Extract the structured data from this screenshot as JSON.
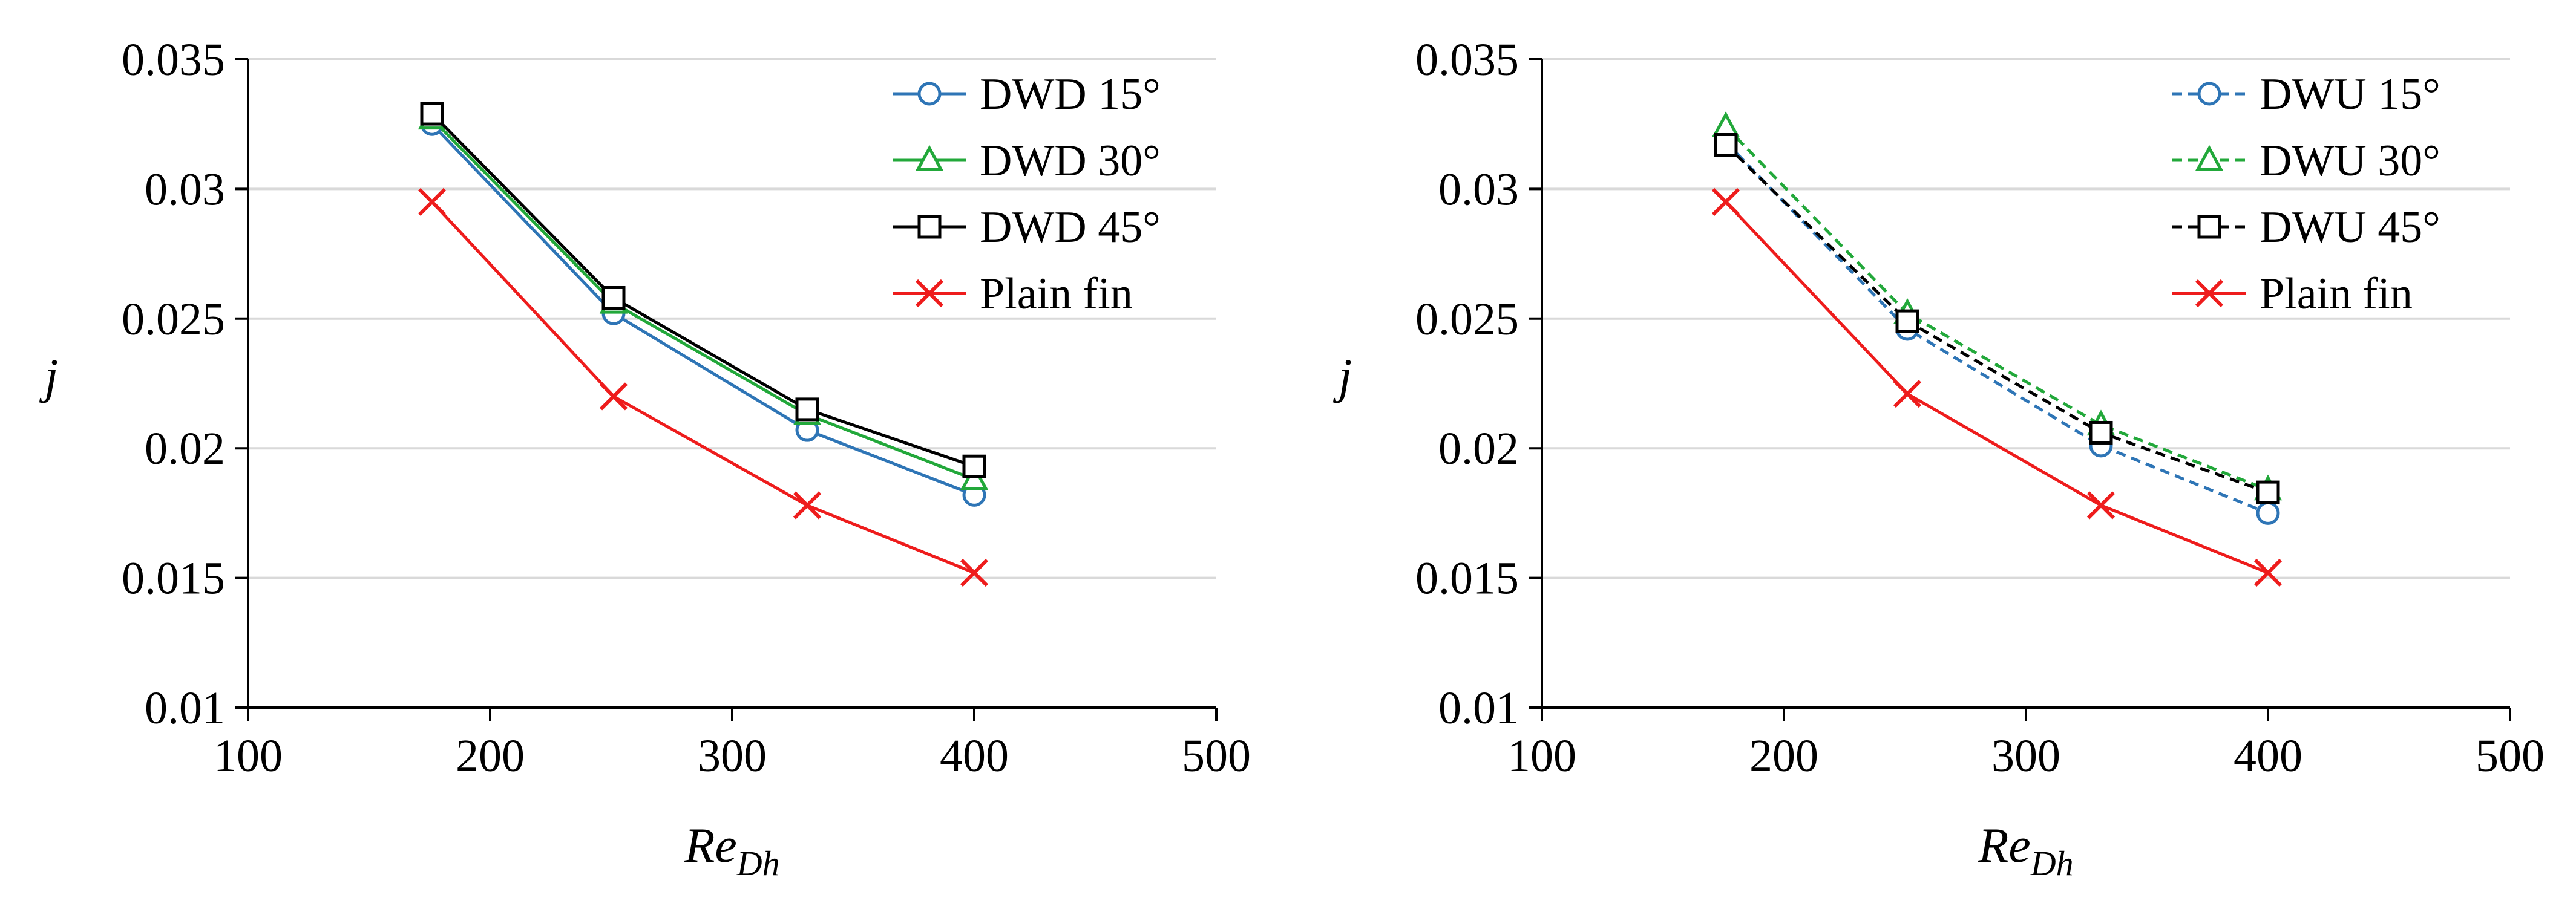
{
  "chart_data": [
    {
      "type": "line",
      "title": "",
      "xlabel": "Re",
      "xlabel_subscript": "Dh",
      "ylabel": "j",
      "xlim": [
        100,
        500
      ],
      "ylim": [
        0.01,
        0.035
      ],
      "xticks": [
        100,
        200,
        300,
        400,
        500
      ],
      "xtick_labels": [
        "100",
        "200",
        "300",
        "400",
        "500"
      ],
      "yticks": [
        0.01,
        0.015,
        0.02,
        0.025,
        0.03,
        0.035
      ],
      "ytick_labels": [
        "0.01",
        "0.015",
        "0.02",
        "0.025",
        "0.03",
        "0.035"
      ],
      "grid": "horizontal",
      "legend_position": "top-right",
      "series": [
        {
          "name": "DWD 15°",
          "color": "#2E75B6",
          "marker": "circle",
          "dash": "solid",
          "x": [
            176,
            251,
            331,
            400
          ],
          "y": [
            0.0325,
            0.0252,
            0.0207,
            0.0182
          ]
        },
        {
          "name": "DWD 30°",
          "color": "#22A83A",
          "marker": "triangle",
          "dash": "solid",
          "x": [
            176,
            251,
            331,
            400
          ],
          "y": [
            0.0327,
            0.0256,
            0.0213,
            0.0188
          ]
        },
        {
          "name": "DWD 45°",
          "color": "#000000",
          "marker": "square",
          "dash": "solid",
          "x": [
            176,
            251,
            331,
            400
          ],
          "y": [
            0.0329,
            0.0258,
            0.0215,
            0.0193
          ]
        },
        {
          "name": "Plain fin",
          "color": "#EE1C1C",
          "marker": "x",
          "dash": "solid",
          "x": [
            176,
            251,
            331,
            400
          ],
          "y": [
            0.0295,
            0.022,
            0.0178,
            0.0152
          ]
        }
      ]
    },
    {
      "type": "line",
      "title": "",
      "xlabel": "Re",
      "xlabel_subscript": "Dh",
      "ylabel": "j",
      "xlim": [
        100,
        500
      ],
      "ylim": [
        0.01,
        0.035
      ],
      "xticks": [
        100,
        200,
        300,
        400,
        500
      ],
      "xtick_labels": [
        "100",
        "200",
        "300",
        "400",
        "500"
      ],
      "yticks": [
        0.01,
        0.015,
        0.02,
        0.025,
        0.03,
        0.035
      ],
      "ytick_labels": [
        "0.01",
        "0.015",
        "0.02",
        "0.025",
        "0.03",
        "0.035"
      ],
      "grid": "horizontal",
      "legend_position": "top-right",
      "series": [
        {
          "name": "DWU 15°",
          "color": "#2E75B6",
          "marker": "circle",
          "dash": "dashed",
          "x": [
            176,
            251,
            331,
            400
          ],
          "y": [
            0.0318,
            0.0246,
            0.0201,
            0.0175
          ]
        },
        {
          "name": "DWU 30°",
          "color": "#22A83A",
          "marker": "triangle",
          "dash": "dashed",
          "x": [
            176,
            251,
            331,
            400
          ],
          "y": [
            0.0324,
            0.0252,
            0.0209,
            0.0184
          ]
        },
        {
          "name": "DWU 45°",
          "color": "#000000",
          "marker": "square",
          "dash": "dashed",
          "x": [
            176,
            251,
            331,
            400
          ],
          "y": [
            0.0317,
            0.0249,
            0.0206,
            0.0183
          ]
        },
        {
          "name": "Plain fin",
          "color": "#EE1C1C",
          "marker": "x",
          "dash": "solid",
          "x": [
            176,
            251,
            331,
            400
          ],
          "y": [
            0.0295,
            0.0221,
            0.0178,
            0.0152
          ]
        }
      ]
    }
  ]
}
